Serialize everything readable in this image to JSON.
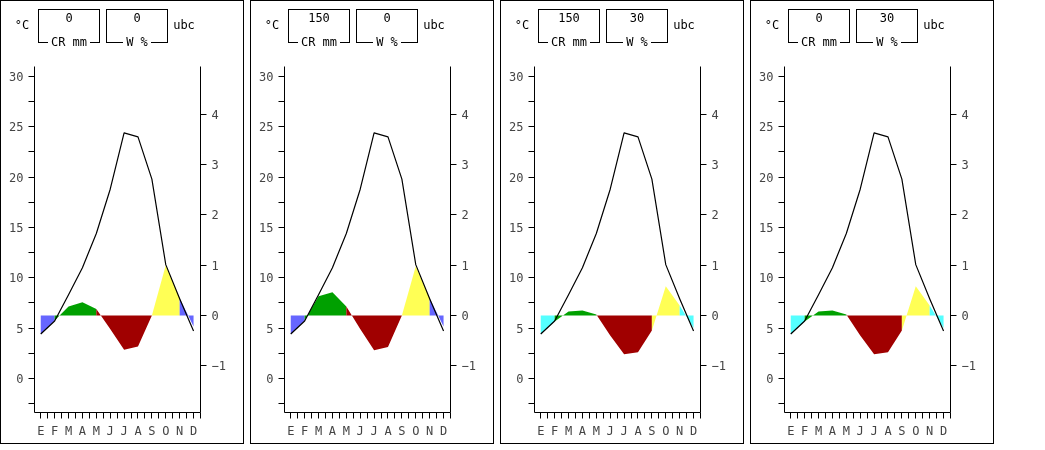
{
  "chart_data": [
    {
      "type": "line",
      "ylabel": "°C",
      "y2label": "ubc",
      "annotations": [
        "0",
        "CR mm",
        "0",
        "W %"
      ],
      "categories": [
        "E",
        "F",
        "M",
        "A",
        "M",
        "J",
        "J",
        "A",
        "S",
        "O",
        "N",
        "D"
      ],
      "ylim": [
        -3.4,
        31
      ],
      "yticks": [
        0,
        5,
        10,
        15,
        20,
        25,
        30,
        {
          "value": -2.5,
          "label": null
        },
        {
          "value": 2.5,
          "label": null
        },
        {
          "value": 7.5,
          "label": null
        },
        {
          "value": 12.5,
          "label": null
        },
        {
          "value": 17.5,
          "label": null
        },
        {
          "value": 22.5,
          "label": null
        },
        {
          "value": 27.5,
          "label": null
        }
      ],
      "y2lim": [
        -1.93,
        4.95
      ],
      "y2ticks": [
        -1,
        0,
        1,
        2,
        3,
        4
      ],
      "series": [
        {
          "type": "area",
          "axis": "y2",
          "color": "#6666ff",
          "values": [
            -0.37,
            -0.1,
            null,
            null,
            null,
            null,
            null,
            null,
            null,
            null,
            null,
            null
          ]
        },
        {
          "type": "area",
          "axis": "y2",
          "color": "#00a000",
          "values": [
            null,
            -0.1,
            0.18,
            0.26,
            0.13,
            null,
            null,
            null,
            null,
            null,
            null,
            null
          ]
        },
        {
          "type": "area",
          "axis": "y2",
          "color": "#a00000",
          "values": [
            null,
            null,
            null,
            null,
            0.13,
            -0.27,
            -0.68,
            -0.62,
            0,
            null,
            null,
            null
          ]
        },
        {
          "type": "area",
          "axis": "y2",
          "color": "#ffff55",
          "values": [
            null,
            null,
            null,
            null,
            null,
            null,
            null,
            null,
            0,
            1.0,
            0.34,
            null
          ]
        },
        {
          "type": "area",
          "axis": "y2",
          "color": "#6666ff",
          "values": [
            null,
            null,
            null,
            null,
            null,
            null,
            null,
            null,
            null,
            null,
            0.34,
            -0.22
          ]
        },
        {
          "color": "#000000",
          "values": [
            4.4,
            5.7,
            8.3,
            11.0,
            14.4,
            18.8,
            24.4,
            24.0,
            19.8,
            11.3,
            7.9,
            4.7
          ]
        }
      ]
    },
    {
      "type": "line",
      "ylabel": "°C",
      "y2label": "ubc",
      "annotations": [
        "150",
        "CR mm",
        "0",
        "W %"
      ],
      "categories": [
        "E",
        "F",
        "M",
        "A",
        "M",
        "J",
        "J",
        "A",
        "S",
        "O",
        "N",
        "D"
      ],
      "ylim": [
        -3.4,
        31
      ],
      "yticks": [
        0,
        5,
        10,
        15,
        20,
        25,
        30,
        {
          "value": -2.5,
          "label": null
        },
        {
          "value": 2.5,
          "label": null
        },
        {
          "value": 7.5,
          "label": null
        },
        {
          "value": 12.5,
          "label": null
        },
        {
          "value": 17.5,
          "label": null
        },
        {
          "value": 22.5,
          "label": null
        },
        {
          "value": 27.5,
          "label": null
        }
      ],
      "y2lim": [
        -1.93,
        4.95
      ],
      "y2ticks": [
        -1,
        0,
        1,
        2,
        3,
        4
      ],
      "series": [
        {
          "type": "area",
          "axis": "y2",
          "color": "#6666ff",
          "values": [
            -0.37,
            -0.1,
            null,
            null,
            null,
            null,
            null,
            null,
            null,
            null,
            null,
            null
          ]
        },
        {
          "type": "area",
          "axis": "y2",
          "color": "#00a000",
          "values": [
            null,
            -0.1,
            0.38,
            0.46,
            0.18,
            null,
            null,
            null,
            null,
            null,
            null,
            null
          ]
        },
        {
          "type": "area",
          "axis": "y2",
          "color": "#a00000",
          "values": [
            null,
            null,
            null,
            null,
            0.18,
            -0.27,
            -0.69,
            -0.63,
            0,
            null,
            null,
            null
          ]
        },
        {
          "type": "area",
          "axis": "y2",
          "color": "#ffff55",
          "values": [
            null,
            null,
            null,
            null,
            null,
            null,
            null,
            null,
            0,
            0.98,
            0.34,
            null
          ]
        },
        {
          "type": "area",
          "axis": "y2",
          "color": "#6666ff",
          "values": [
            null,
            null,
            null,
            null,
            null,
            null,
            null,
            null,
            null,
            null,
            0.34,
            -0.22
          ]
        },
        {
          "color": "#000000",
          "values": [
            4.4,
            5.7,
            8.3,
            11.0,
            14.4,
            18.8,
            24.4,
            24.0,
            19.8,
            11.3,
            7.9,
            4.7
          ]
        }
      ]
    },
    {
      "type": "line",
      "ylabel": "°C",
      "y2label": "ubc",
      "annotations": [
        "150",
        "CR mm",
        "30",
        "W %"
      ],
      "categories": [
        "E",
        "F",
        "M",
        "A",
        "M",
        "J",
        "J",
        "A",
        "S",
        "O",
        "N",
        "D"
      ],
      "ylim": [
        -3.4,
        31
      ],
      "yticks": [
        0,
        5,
        10,
        15,
        20,
        25,
        30,
        {
          "value": -2.5,
          "label": null
        },
        {
          "value": 2.5,
          "label": null
        },
        {
          "value": 7.5,
          "label": null
        },
        {
          "value": 12.5,
          "label": null
        },
        {
          "value": 17.5,
          "label": null
        },
        {
          "value": 22.5,
          "label": null
        },
        {
          "value": 27.5,
          "label": null
        }
      ],
      "y2lim": [
        -1.93,
        4.95
      ],
      "y2ticks": [
        -1,
        0,
        1,
        2,
        3,
        4
      ],
      "series": [
        {
          "type": "area",
          "axis": "y2",
          "color": "#55ffff",
          "values": [
            -0.37,
            -0.12,
            null,
            null,
            null,
            null,
            null,
            null,
            null,
            null,
            null,
            null
          ]
        },
        {
          "type": "area",
          "axis": "y2",
          "color": "#00a000",
          "values": [
            null,
            -0.12,
            0.08,
            0.1,
            0.02,
            null,
            null,
            null,
            null,
            null,
            null,
            null
          ]
        },
        {
          "type": "area",
          "axis": "y2",
          "color": "#a00000",
          "values": [
            null,
            null,
            null,
            null,
            0.02,
            -0.4,
            -0.77,
            -0.73,
            -0.3,
            null,
            null,
            null
          ]
        },
        {
          "type": "area",
          "axis": "y2",
          "color": "#ffff55",
          "values": [
            null,
            null,
            null,
            null,
            null,
            null,
            null,
            null,
            -0.3,
            0.58,
            0.2,
            null
          ]
        },
        {
          "type": "area",
          "axis": "y2",
          "color": "#55ffff",
          "values": [
            null,
            null,
            null,
            null,
            null,
            null,
            null,
            null,
            null,
            null,
            0.2,
            -0.25
          ]
        },
        {
          "color": "#000000",
          "values": [
            4.4,
            5.7,
            8.3,
            11.0,
            14.4,
            18.8,
            24.4,
            24.0,
            19.8,
            11.3,
            7.9,
            4.7
          ]
        }
      ]
    },
    {
      "type": "line",
      "ylabel": "°C",
      "y2label": "ubc",
      "annotations": [
        "0",
        "CR mm",
        "30",
        "W %"
      ],
      "categories": [
        "E",
        "F",
        "M",
        "A",
        "M",
        "J",
        "J",
        "A",
        "S",
        "O",
        "N",
        "D"
      ],
      "ylim": [
        -3.4,
        31
      ],
      "yticks": [
        0,
        5,
        10,
        15,
        20,
        25,
        30,
        {
          "value": -2.5,
          "label": null
        },
        {
          "value": 2.5,
          "label": null
        },
        {
          "value": 7.5,
          "label": null
        },
        {
          "value": 12.5,
          "label": null
        },
        {
          "value": 17.5,
          "label": null
        },
        {
          "value": 22.5,
          "label": null
        },
        {
          "value": 27.5,
          "label": null
        }
      ],
      "y2lim": [
        -1.93,
        4.95
      ],
      "y2ticks": [
        -1,
        0,
        1,
        2,
        3,
        4
      ],
      "series": [
        {
          "type": "area",
          "axis": "y2",
          "color": "#55ffff",
          "values": [
            -0.37,
            -0.12,
            null,
            null,
            null,
            null,
            null,
            null,
            null,
            null,
            null,
            null
          ]
        },
        {
          "type": "area",
          "axis": "y2",
          "color": "#00a000",
          "values": [
            null,
            -0.12,
            0.08,
            0.1,
            0.02,
            null,
            null,
            null,
            null,
            null,
            null,
            null
          ]
        },
        {
          "type": "area",
          "axis": "y2",
          "color": "#a00000",
          "values": [
            null,
            null,
            null,
            null,
            0.02,
            -0.4,
            -0.77,
            -0.73,
            -0.3,
            null,
            null,
            null
          ]
        },
        {
          "type": "area",
          "axis": "y2",
          "color": "#ffff55",
          "values": [
            null,
            null,
            null,
            null,
            null,
            null,
            null,
            null,
            -0.3,
            0.58,
            0.2,
            null
          ]
        },
        {
          "type": "area",
          "axis": "y2",
          "color": "#55ffff",
          "values": [
            null,
            null,
            null,
            null,
            null,
            null,
            null,
            null,
            null,
            null,
            0.2,
            -0.25
          ]
        },
        {
          "color": "#000000",
          "values": [
            4.4,
            5.7,
            8.3,
            11.0,
            14.4,
            18.8,
            24.4,
            24.0,
            19.8,
            11.3,
            7.9,
            4.7
          ]
        }
      ]
    }
  ]
}
